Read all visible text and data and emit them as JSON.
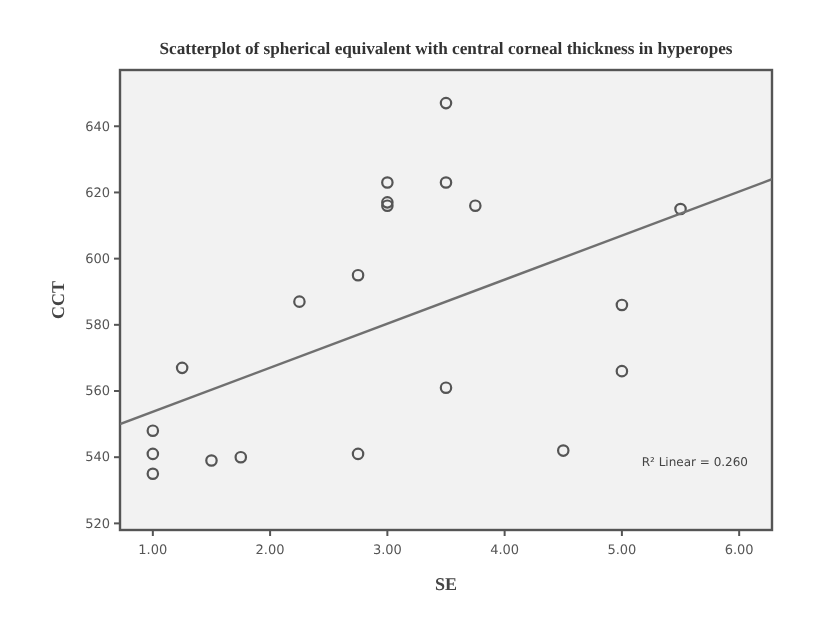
{
  "chart_data": {
    "type": "scatter",
    "title": "Scatterplot of spherical equivalent with central corneal thickness in hyperopes",
    "xlabel": "SE",
    "ylabel": "CCT",
    "grid": false,
    "xlim": [
      0.72,
      6.28
    ],
    "ylim": [
      518,
      657
    ],
    "xticks": [
      {
        "value": 1,
        "label": "1.00"
      },
      {
        "value": 2,
        "label": "2.00"
      },
      {
        "value": 3,
        "label": "3.00"
      },
      {
        "value": 4,
        "label": "4.00"
      },
      {
        "value": 5,
        "label": "5.00"
      },
      {
        "value": 6,
        "label": "6.00"
      }
    ],
    "yticks": [
      520,
      540,
      560,
      580,
      600,
      620,
      640
    ],
    "series": [
      {
        "color": "#555555",
        "marker": "circle",
        "x": [
          1,
          1,
          1,
          1.25,
          1.5,
          1.75,
          2.25,
          2.75,
          2.75,
          3,
          3,
          3,
          3.5,
          3.5,
          3.5,
          3.75,
          4.5,
          5,
          5,
          5.5
        ],
        "values": [
          548,
          541,
          535,
          567,
          539,
          540,
          587,
          595,
          541,
          623,
          617,
          616,
          647,
          623,
          561,
          616,
          542,
          586,
          566,
          615
        ]
      },
      {
        "type": "line",
        "color": "#707070",
        "x": [
          0.72,
          6.28
        ],
        "values": [
          550,
          624
        ]
      }
    ],
    "annotations": [
      "R² Linear = 0.260"
    ]
  }
}
